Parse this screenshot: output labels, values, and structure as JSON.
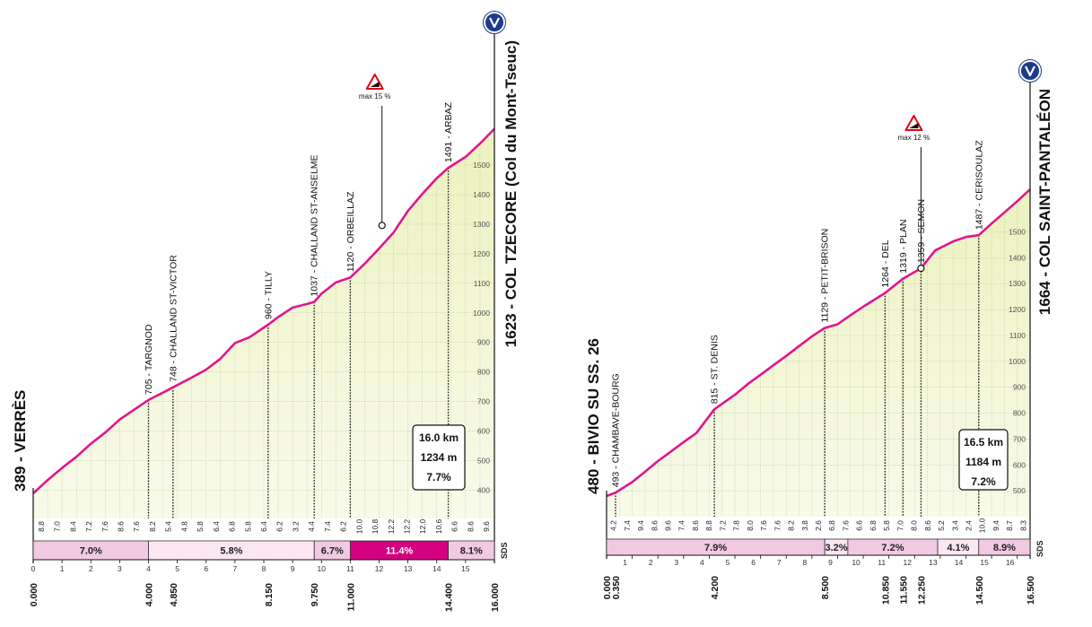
{
  "chart_data": [
    {
      "type": "area",
      "start_label": "389 - VERRÈS",
      "finish_label": "1623 - COL TZECORE (Col du Mont-Tseuc)",
      "finish_icon": "finish-v-marker",
      "x_unit": "km",
      "xlim": [
        0,
        16
      ],
      "ylim": [
        389,
        1623
      ],
      "y_tick_labels": [
        "400",
        "500",
        "600",
        "700",
        "800",
        "900",
        "1000",
        "1100",
        "1200",
        "1300",
        "1400",
        "1500"
      ],
      "y_ticks": [
        400,
        500,
        600,
        700,
        800,
        900,
        1000,
        1100,
        1200,
        1300,
        1400,
        1500
      ],
      "x_km_labels": [
        "0",
        "1",
        "2",
        "3",
        "4",
        "5",
        "6",
        "7",
        "8",
        "9",
        "10",
        "11",
        "12",
        "13",
        "14",
        "15"
      ],
      "x_distance_labels": [
        {
          "km": 0,
          "label": "0.000"
        },
        {
          "km": 4,
          "label": "4.000"
        },
        {
          "km": 4.85,
          "label": "4.850"
        },
        {
          "km": 8.15,
          "label": "8.150"
        },
        {
          "km": 9.75,
          "label": "9.750"
        },
        {
          "km": 11,
          "label": "11.000"
        },
        {
          "km": 14.4,
          "label": "14.400"
        },
        {
          "km": 16,
          "label": "16.000"
        }
      ],
      "profile": {
        "x": [
          0,
          0.5,
          1,
          1.5,
          2,
          2.5,
          3,
          3.5,
          4,
          4.5,
          4.85,
          5.5,
          6,
          6.5,
          7,
          7.5,
          8.15,
          8.5,
          9,
          9.5,
          9.75,
          10,
          10.5,
          11,
          11.5,
          12,
          12.5,
          13,
          13.5,
          14,
          14.4,
          15,
          15.5,
          16
        ],
        "y": [
          389,
          434,
          475,
          513,
          557,
          595,
          639,
          672,
          705,
          730,
          748,
          781,
          808,
          845,
          898,
          917,
          960,
          986,
          1018,
          1030,
          1037,
          1065,
          1103,
          1120,
          1166,
          1218,
          1272,
          1345,
          1403,
          1456,
          1491,
          1528,
          1573,
          1623
        ]
      },
      "km_gradients": [
        "8.8",
        "7.0",
        "8.4",
        "7.2",
        "7.6",
        "8.6",
        "7.6",
        "8.2",
        "5.4",
        "4.8",
        "5.8",
        "6.4",
        "6.8",
        "5.8",
        "6.4",
        "6.2",
        "3.2",
        "4.4",
        "7.4",
        "6.2",
        "10.0",
        "10.8",
        "12.2",
        "12.2",
        "12.0",
        "10.6",
        "6.6",
        "8.6",
        "9.6"
      ],
      "sector_gradients": [
        {
          "from": 0,
          "to": 4,
          "label": "7.0%",
          "color": "#f2c9e2"
        },
        {
          "from": 4,
          "to": 9.75,
          "label": "5.8%",
          "color": "#fbe6f2"
        },
        {
          "from": 9.75,
          "to": 11,
          "label": "6.7%",
          "color": "#f2c9e2"
        },
        {
          "from": 11,
          "to": 14.4,
          "label": "11.4%",
          "color": "#d4007f"
        },
        {
          "from": 14.4,
          "to": 16,
          "label": "8.1%",
          "color": "#f2c9e2"
        }
      ],
      "waypoints": [
        {
          "km": 4,
          "label": "705 - TARGNOD"
        },
        {
          "km": 4.85,
          "label": "748 - CHALLAND ST-VICTOR"
        },
        {
          "km": 8.15,
          "label": "960 - TILLY"
        },
        {
          "km": 9.75,
          "label": "1037 - CHALLAND ST-ANSELME"
        },
        {
          "km": 11,
          "label": "1120 - ORBEILLAZ"
        },
        {
          "km": 14.4,
          "label": "1491 - ARBAZ"
        }
      ],
      "max_gradient": {
        "km": 12.1,
        "label": "max 15 %"
      },
      "summary": {
        "distance": "16.0 km",
        "gain": "1234 m",
        "gradient": "7.7%"
      },
      "sds_logo": "SDS"
    },
    {
      "type": "area",
      "start_label": "480 - BIVIO SU SS. 26",
      "finish_label": "1664 - COL SAINT-PANTALÉON",
      "finish_icon": "finish-v-marker",
      "x_unit": "km",
      "xlim": [
        0,
        16.5
      ],
      "ylim": [
        480,
        1664
      ],
      "y_tick_labels": [
        "500",
        "600",
        "700",
        "800",
        "900",
        "1000",
        "1100",
        "1200",
        "1300",
        "1400",
        "1500"
      ],
      "y_ticks": [
        500,
        600,
        700,
        800,
        900,
        1000,
        1100,
        1200,
        1300,
        1400,
        1500
      ],
      "x_km_labels": [
        "1",
        "2",
        "3",
        "4",
        "5",
        "6",
        "7",
        "8",
        "9",
        "10",
        "11",
        "12",
        "13",
        "14",
        "15",
        "16"
      ],
      "x_distance_labels": [
        {
          "km": 0,
          "label": "0.000"
        },
        {
          "km": 0.35,
          "label": "0.350"
        },
        {
          "km": 4.2,
          "label": "4.200"
        },
        {
          "km": 8.5,
          "label": "8.500"
        },
        {
          "km": 10.85,
          "label": "10.850"
        },
        {
          "km": 11.55,
          "label": "11.550"
        },
        {
          "km": 12.25,
          "label": "12.250"
        },
        {
          "km": 14.5,
          "label": "14.500"
        },
        {
          "km": 16.5,
          "label": "16.500"
        }
      ],
      "profile": {
        "x": [
          0,
          0.35,
          1,
          1.5,
          2,
          2.5,
          3,
          3.5,
          4.2,
          5,
          5.5,
          6,
          6.5,
          7,
          7.5,
          8,
          8.5,
          9,
          9.5,
          10,
          10.85,
          11.55,
          12.25,
          12.8,
          13.5,
          14,
          14.5,
          15,
          15.5,
          16,
          16.5
        ],
        "y": [
          480,
          493,
          534,
          574,
          615,
          651,
          688,
          723,
          815,
          871,
          912,
          948,
          985,
          1021,
          1059,
          1096,
          1129,
          1143,
          1178,
          1211,
          1264,
          1319,
          1359,
          1428,
          1463,
          1480,
          1487,
          1532,
          1575,
          1618,
          1664
        ]
      },
      "km_gradients": [
        "4.2",
        "7.4",
        "9.4",
        "8.6",
        "9.6",
        "7.4",
        "8.6",
        "8.8",
        "7.2",
        "7.8",
        "8.0",
        "7.6",
        "7.6",
        "8.2",
        "3.8",
        "2.6",
        "6.8",
        "7.6",
        "6.6",
        "6.8",
        "5.8",
        "7.0",
        "8.0",
        "8.6",
        "5.2",
        "3.4",
        "2.4",
        "10.0",
        "9.4",
        "8.7",
        "8.3"
      ],
      "sector_gradients": [
        {
          "from": 0,
          "to": 8.5,
          "label": "7.9%",
          "color": "#f2c9e2"
        },
        {
          "from": 8.5,
          "to": 9.4,
          "label": "3.2%",
          "color": "#fbe6f2"
        },
        {
          "from": 9.4,
          "to": 12.9,
          "label": "7.2%",
          "color": "#f2c9e2"
        },
        {
          "from": 12.9,
          "to": 14.5,
          "label": "4.1%",
          "color": "#fbe6f2"
        },
        {
          "from": 14.5,
          "to": 16.5,
          "label": "8.9%",
          "color": "#f2c9e2"
        }
      ],
      "waypoints": [
        {
          "km": 0.35,
          "label": "493 - CHAMBAVE-BOURG"
        },
        {
          "km": 4.2,
          "label": "815 - ST. DENIS"
        },
        {
          "km": 8.5,
          "label": "1129 - PETIT-BRISON"
        },
        {
          "km": 10.85,
          "label": "1264 - DEL"
        },
        {
          "km": 11.55,
          "label": "1319 - PLAN"
        },
        {
          "km": 12.25,
          "label": "1359 - SEMON"
        },
        {
          "km": 14.5,
          "label": "1487 - CERISOULAZ"
        }
      ],
      "max_gradient": {
        "km": 12.25,
        "label": "max 12 %"
      },
      "summary": {
        "distance": "16.5 km",
        "gain": "1184 m",
        "gradient": "7.2%"
      },
      "sds_logo": "SDS"
    }
  ]
}
